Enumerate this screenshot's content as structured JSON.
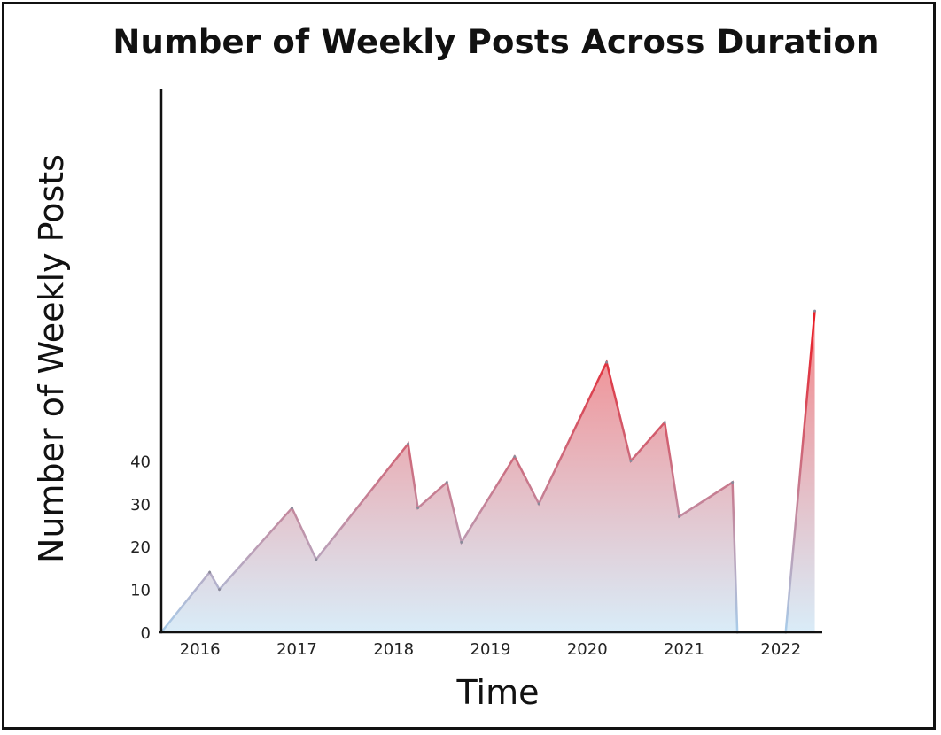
{
  "chart_data": {
    "type": "area",
    "title": "Number of Weekly Posts Across Duration",
    "xlabel": "Time",
    "ylabel": "Number of Weekly Posts",
    "x_tick_labels": [
      "2016",
      "2017",
      "2018",
      "2019",
      "2020",
      "2021",
      "2022"
    ],
    "y_tick_labels": [
      "0",
      "10",
      "20",
      "30",
      "40"
    ],
    "yticks": [
      0,
      10,
      20,
      30,
      40
    ],
    "xlim": [
      2015.6,
      2022.4
    ],
    "ylim": [
      0,
      130
    ],
    "grid": false,
    "legend": "none",
    "series": [
      {
        "points": [
          {
            "x": 2015.6,
            "y": 0
          },
          {
            "x": 2016.1,
            "y": 14
          },
          {
            "x": 2016.2,
            "y": 10
          },
          {
            "x": 2016.95,
            "y": 29
          },
          {
            "x": 2017.2,
            "y": 17
          },
          {
            "x": 2018.15,
            "y": 44
          },
          {
            "x": 2018.25,
            "y": 29
          },
          {
            "x": 2018.55,
            "y": 35
          },
          {
            "x": 2018.7,
            "y": 21
          },
          {
            "x": 2019.25,
            "y": 41
          },
          {
            "x": 2019.5,
            "y": 30
          },
          {
            "x": 2020.2,
            "y": 63
          },
          {
            "x": 2020.45,
            "y": 40
          },
          {
            "x": 2020.8,
            "y": 49
          },
          {
            "x": 2020.95,
            "y": 27
          },
          {
            "x": 2021.5,
            "y": 35
          },
          {
            "x": 2021.55,
            "y": 0
          },
          {
            "x": 2022.05,
            "y": 0
          },
          {
            "x": 2022.35,
            "y": 75
          }
        ]
      }
    ],
    "colors": {
      "high": "#e8202a",
      "low": "#a9cdea",
      "fill_high": "#f28b8f",
      "fill_low": "#d9ecf8"
    }
  }
}
